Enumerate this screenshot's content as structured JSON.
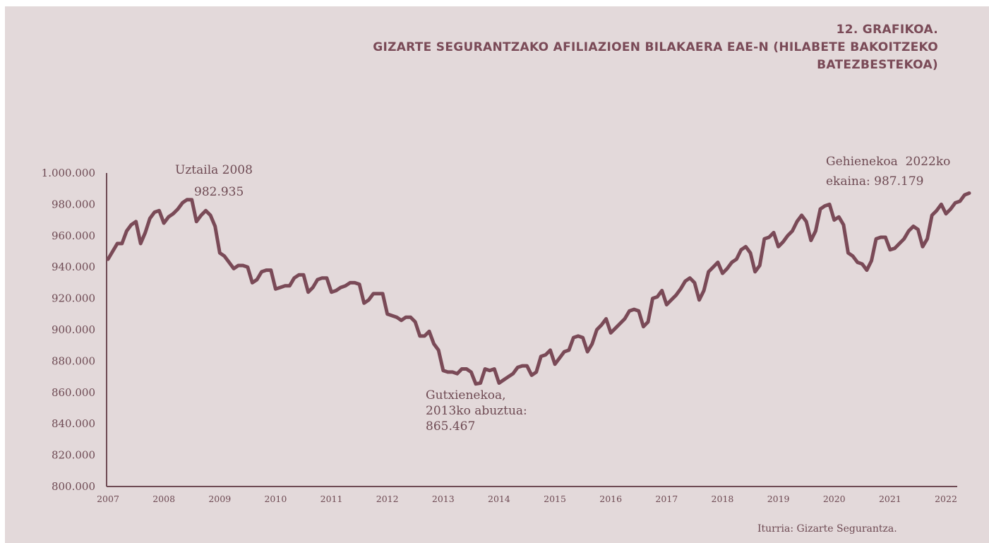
{
  "chart_data": {
    "type": "line",
    "label": "12. GRAFIKOA.",
    "title_lines": [
      "GIZARTE SEGURANTZAKO AFILIAZIOEN BILAKAERA EAE-N (HILABETE BAKOITZEKO",
      "BATEZBESTEKOA)"
    ],
    "source": "Iturria: Gizarte Segurantza.",
    "ylim": [
      800000,
      1000000
    ],
    "yticks": [
      800000,
      820000,
      840000,
      860000,
      880000,
      900000,
      920000,
      940000,
      960000,
      980000,
      1000000
    ],
    "ytick_labels": [
      "800.000",
      "820.000",
      "840.000",
      "860.000",
      "880.000",
      "900.000",
      "920.000",
      "940.000",
      "960.000",
      "980.000",
      "1.000.000"
    ],
    "xlim": [
      2007,
      2022.5
    ],
    "xticks": [
      "2007",
      "2008",
      "2009",
      "2010",
      "2011",
      "2012",
      "2013",
      "2014",
      "2015",
      "2016",
      "2017",
      "2018",
      "2019",
      "2020",
      "2021",
      "2022"
    ],
    "annotations": [
      {
        "name": "max-2008",
        "lines": [
          "Uztaila 2008",
          "     982.935"
        ],
        "x": 2008.5,
        "y": 982935
      },
      {
        "name": "min-2013",
        "lines": [
          "Gutxienekoa,",
          "2013ko abuztua:",
          "865.467"
        ],
        "x": 2013.58,
        "y": 865467
      },
      {
        "name": "max-2022",
        "lines": [
          "Gehienekoa  2022ko",
          "ekaina: 987.179"
        ],
        "x": 2022.42,
        "y": 987179
      }
    ],
    "series": [
      {
        "color": "#7a4a57",
        "values": [
          945000,
          950000,
          955000,
          955000,
          963000,
          967000,
          969000,
          955000,
          962000,
          971000,
          975000,
          976000,
          968000,
          972000,
          974000,
          977000,
          981000,
          983000,
          982935,
          969000,
          973000,
          976000,
          973000,
          966000,
          949000,
          947000,
          943000,
          939000,
          941000,
          941000,
          940000,
          930000,
          932000,
          937000,
          938000,
          938000,
          926000,
          927000,
          928000,
          928000,
          933000,
          935000,
          935000,
          924000,
          927000,
          932000,
          933000,
          933000,
          924000,
          925000,
          927000,
          928000,
          930000,
          930000,
          929000,
          917000,
          919000,
          923000,
          923000,
          923000,
          910000,
          909000,
          908000,
          906000,
          908000,
          908000,
          905000,
          896000,
          896000,
          899000,
          891000,
          887000,
          874000,
          873000,
          873000,
          872000,
          875000,
          875000,
          873000,
          865467,
          866000,
          875000,
          874000,
          875000,
          866000,
          868000,
          870000,
          872000,
          876000,
          877000,
          877000,
          871000,
          873000,
          883000,
          884000,
          887000,
          878000,
          882000,
          886000,
          887000,
          895000,
          896000,
          895000,
          886000,
          891000,
          900000,
          903000,
          907000,
          898000,
          901000,
          904000,
          907000,
          912000,
          913000,
          912000,
          902000,
          905000,
          920000,
          921000,
          925000,
          916000,
          919000,
          922000,
          926000,
          931000,
          933000,
          930000,
          919000,
          925000,
          937000,
          940000,
          943000,
          936000,
          939000,
          943000,
          945000,
          951000,
          953000,
          949000,
          937000,
          941000,
          958000,
          959000,
          962000,
          953000,
          956000,
          960000,
          963000,
          969000,
          973000,
          969000,
          957000,
          963000,
          977000,
          979000,
          980000,
          970000,
          972000,
          967000,
          949000,
          947000,
          943000,
          942000,
          938000,
          944000,
          958000,
          959000,
          959000,
          951000,
          952000,
          955000,
          958000,
          963000,
          966000,
          964000,
          953000,
          958000,
          973000,
          976000,
          980000,
          974000,
          977000,
          981000,
          982000,
          986000,
          987179
        ]
      }
    ]
  }
}
